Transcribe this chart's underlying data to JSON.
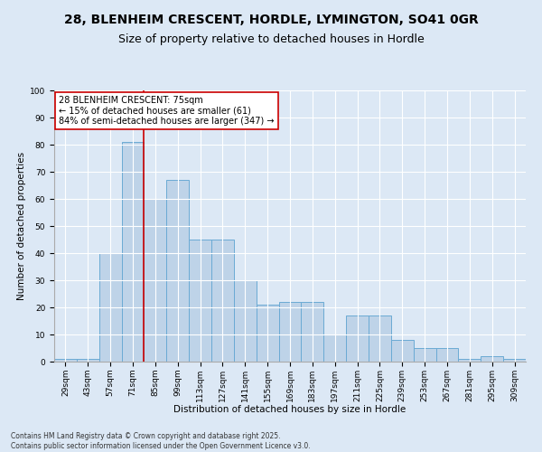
{
  "title_line1": "28, BLENHEIM CRESCENT, HORDLE, LYMINGTON, SO41 0GR",
  "title_line2": "Size of property relative to detached houses in Hordle",
  "xlabel": "Distribution of detached houses by size in Hordle",
  "ylabel": "Number of detached properties",
  "categories": [
    "29sqm",
    "43sqm",
    "57sqm",
    "71sqm",
    "85sqm",
    "99sqm",
    "113sqm",
    "127sqm",
    "141sqm",
    "155sqm",
    "169sqm",
    "183sqm",
    "197sqm",
    "211sqm",
    "225sqm",
    "239sqm",
    "253sqm",
    "267sqm",
    "281sqm",
    "295sqm",
    "309sqm"
  ],
  "values": [
    1,
    1,
    40,
    81,
    60,
    67,
    45,
    45,
    30,
    21,
    22,
    22,
    10,
    17,
    17,
    8,
    5,
    5,
    1,
    2,
    1
  ],
  "bar_color": "#bed3e8",
  "bar_edge_color": "#6aaad4",
  "vline_color": "#cc0000",
  "annotation_text": "28 BLENHEIM CRESCENT: 75sqm\n← 15% of detached houses are smaller (61)\n84% of semi-detached houses are larger (347) →",
  "annotation_box_color": "#ffffff",
  "annotation_box_edge": "#cc0000",
  "ylim": [
    0,
    100
  ],
  "yticks": [
    0,
    10,
    20,
    30,
    40,
    50,
    60,
    70,
    80,
    90,
    100
  ],
  "background_color": "#dce8f5",
  "plot_bg_color": "#dce8f5",
  "footer_text": "Contains HM Land Registry data © Crown copyright and database right 2025.\nContains public sector information licensed under the Open Government Licence v3.0.",
  "title_fontsize": 10,
  "subtitle_fontsize": 9,
  "axis_label_fontsize": 7.5,
  "tick_fontsize": 6.5,
  "annotation_fontsize": 7
}
